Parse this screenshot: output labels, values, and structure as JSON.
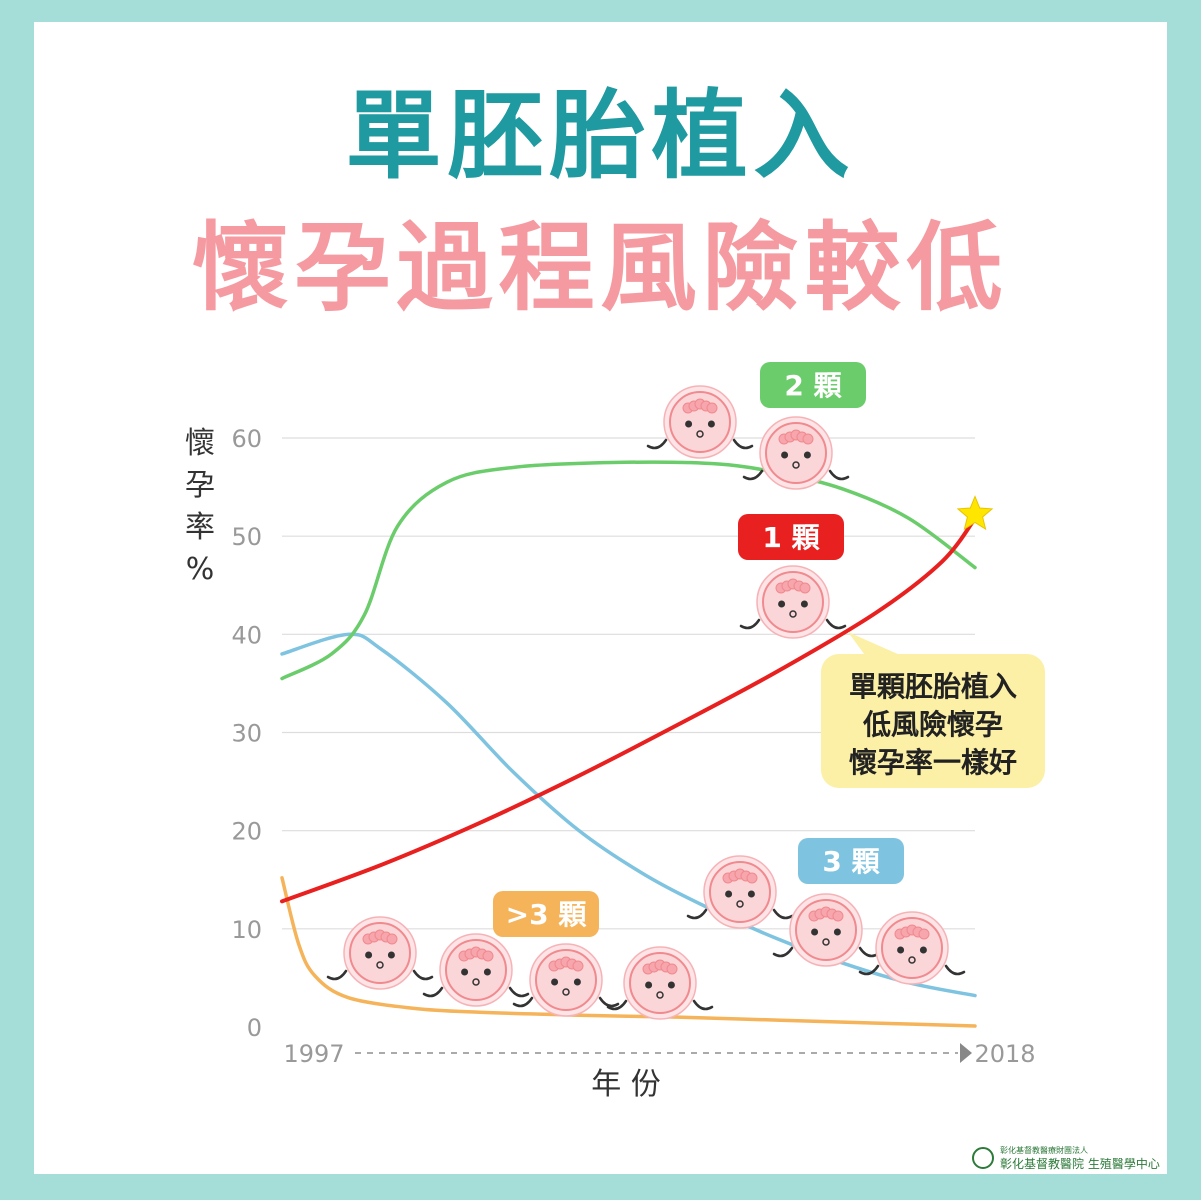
{
  "title": {
    "line1": "單胚胎植入",
    "line2": "懷孕過程風險較低"
  },
  "colors": {
    "background": "#a5ddd9",
    "title_teal": "#1e9aa0",
    "title_pink": "#f59aa0",
    "one_embryo": "#e8201f",
    "two_embryos": "#6bcc6b",
    "three_embryos": "#7ec3e0",
    "more_than_three": "#f5b35a",
    "callout_bg": "#fbf0a6",
    "grid": "#dddddd",
    "embryo_fill": "#fbd6d8",
    "embryo_stroke": "#f08a8f"
  },
  "chart_data": {
    "type": "line",
    "ylabel": "懷孕率%",
    "xlabel": "年 份",
    "x_start_label": "1997",
    "x_end_label": "2018",
    "xlim": [
      1997,
      2018
    ],
    "ylim": [
      0,
      60
    ],
    "yticks": [
      0,
      10,
      20,
      30,
      40,
      50,
      60
    ],
    "grid": true,
    "series": [
      {
        "name": "1 顆",
        "color": "#e8201f",
        "x": [
          1997,
          2000,
          2003,
          2006,
          2009,
          2012,
          2015,
          2017,
          2018
        ],
        "y": [
          12.8,
          16.5,
          20.8,
          25.6,
          30.8,
          36.2,
          42.2,
          47.4,
          51.8
        ]
      },
      {
        "name": "2 顆",
        "color": "#6bcc6b",
        "x": [
          1997,
          1998.5,
          1999.5,
          2000.5,
          2002,
          2004,
          2007,
          2010,
          2012,
          2014,
          2016,
          2018
        ],
        "y": [
          35.5,
          38,
          42,
          51,
          55.5,
          57,
          57.5,
          57.4,
          56.5,
          54.8,
          51.8,
          46.8
        ]
      },
      {
        "name": "3 顆",
        "color": "#7ec3e0",
        "x": [
          1997,
          1999,
          2000,
          2002,
          2004,
          2006,
          2008,
          2010,
          2012,
          2014,
          2016,
          2018
        ],
        "y": [
          38,
          40,
          38.5,
          33,
          26,
          20,
          15.5,
          12,
          9,
          6.5,
          4.5,
          3.2
        ]
      },
      {
        "name": ">3 顆",
        "color": "#f5b35a",
        "x": [
          1997,
          1997.5,
          1998,
          1999,
          2001,
          2003,
          2006,
          2009,
          2012,
          2015,
          2018
        ],
        "y": [
          15.2,
          8.5,
          5.2,
          3,
          1.9,
          1.5,
          1.2,
          1,
          0.7,
          0.4,
          0.1
        ]
      }
    ],
    "annotations": {
      "callout": [
        "單顆胚胎植入",
        "低風險懷孕",
        "懷孕率一樣好"
      ]
    }
  },
  "footer": {
    "org_small": "彰化基督教醫療財團法人",
    "org": "彰化基督教醫院 生殖醫學中心"
  }
}
